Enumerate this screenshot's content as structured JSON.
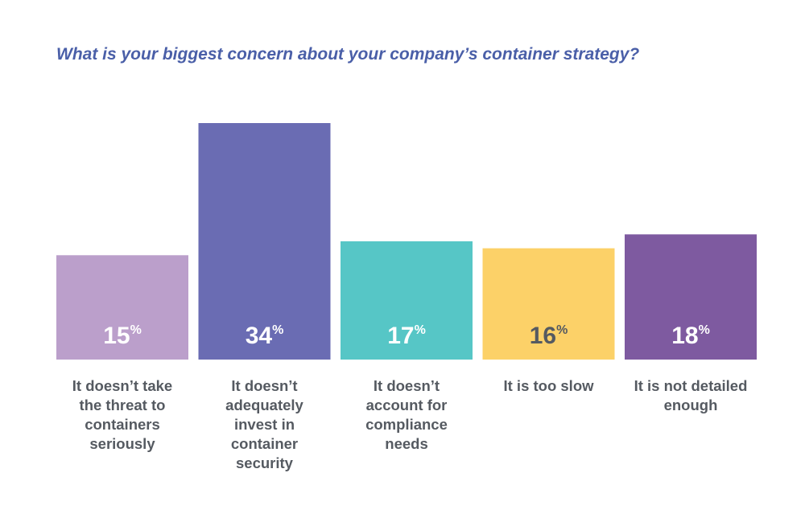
{
  "title": "What is your biggest concern about your company’s container strategy?",
  "chart_data": {
    "type": "bar",
    "title": "What is your biggest concern about your company’s container strategy?",
    "xlabel": "",
    "ylabel": "",
    "ylim": [
      0,
      34
    ],
    "grid": false,
    "unit": "%",
    "categories": [
      "It doesn’t take the threat to containers seriously",
      "It doesn’t adequately invest in container security",
      "It doesn’t account for compliance needs",
      "It is too slow",
      "It is not detailed enough"
    ],
    "values": [
      15,
      34,
      17,
      16,
      18
    ],
    "colors": [
      "#bb9fcb",
      "#6a6cb3",
      "#56c6c6",
      "#fcd168",
      "#7e5aa0"
    ],
    "value_label_colors": [
      "#ffffff",
      "#ffffff",
      "#ffffff",
      "#555a61",
      "#ffffff"
    ]
  },
  "category_labels": [
    [
      "It doesn’t take",
      "the threat to",
      "containers",
      "seriously"
    ],
    [
      "It doesn’t",
      "adequately",
      "invest in",
      "container",
      "security"
    ],
    [
      "It doesn’t",
      "account for",
      "compliance",
      "needs"
    ],
    [
      "It is too slow"
    ],
    [
      "It is not detailed",
      "enough"
    ]
  ]
}
